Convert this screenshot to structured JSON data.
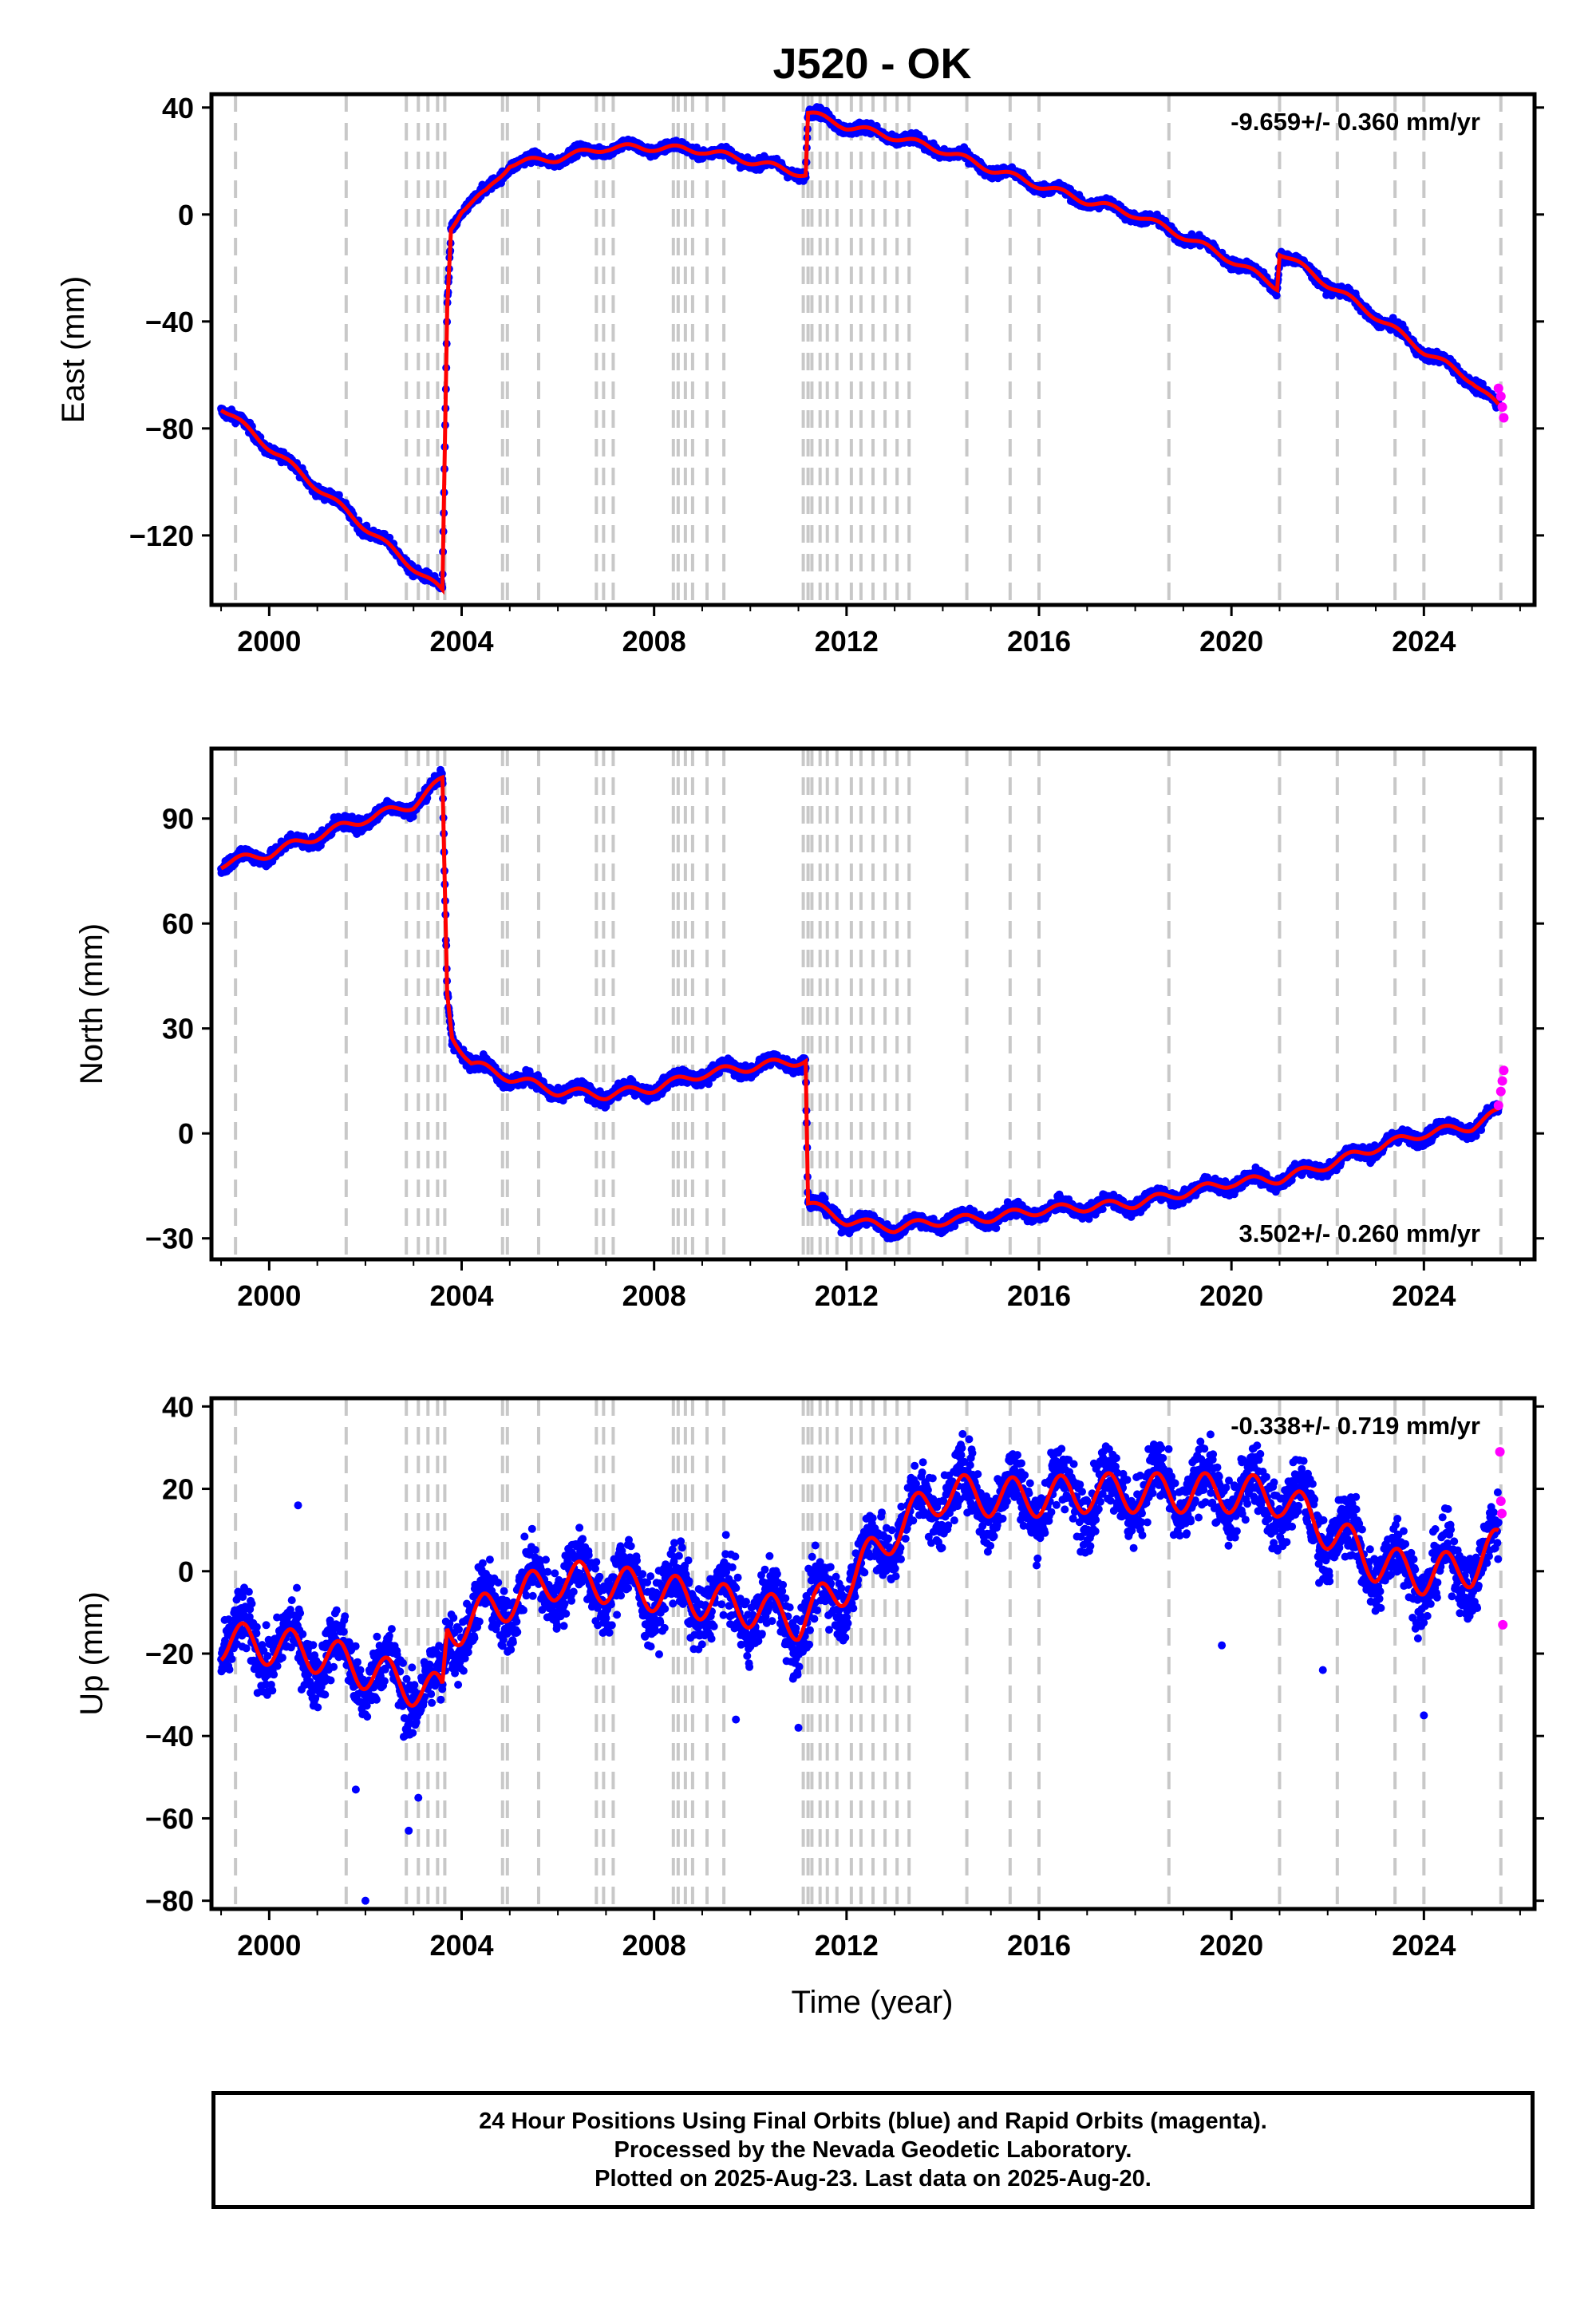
{
  "title": "J520 - OK",
  "xlabel": "Time (year)",
  "footer_lines": [
    "24 Hour Positions Using Final Orbits (blue) and Rapid Orbits (magenta).",
    "Processed by the Nevada Geodetic Laboratory.",
    "Plotted on 2025-Aug-23. Last data on 2025-Aug-20."
  ],
  "colors": {
    "final": "#0000ff",
    "rapid": "#ff00ff",
    "model": "#ff0000",
    "event_line": "#c8c8c8"
  },
  "chart_data": [
    {
      "type": "scatter",
      "component": "East",
      "ylabel": "East (mm)",
      "xlim": [
        1998.8,
        2026.3
      ],
      "ylim": [
        -146,
        45
      ],
      "yticks": [
        40,
        0,
        -40,
        -80,
        -120
      ],
      "xticks": [
        2000,
        2004,
        2008,
        2012,
        2016,
        2020,
        2024
      ],
      "rate_text": "-9.659+/- 0.360 mm/yr",
      "grid": false,
      "series": [
        {
          "role": "final",
          "values": [
            [
              1999.0,
              -72
            ],
            [
              2003.6,
              -141
            ],
            [
              2003.7,
              -35
            ],
            [
              2003.78,
              -5
            ],
            [
              2004.0,
              2
            ],
            [
              2004.5,
              8
            ],
            [
              2005.0,
              19
            ],
            [
              2006.0,
              21
            ],
            [
              2007.0,
              25
            ],
            [
              2008.0,
              25
            ],
            [
              2009.0,
              24
            ],
            [
              2010.0,
              20
            ],
            [
              2011.15,
              15
            ],
            [
              2011.2,
              38
            ],
            [
              2012.0,
              33
            ],
            [
              2013.0,
              29
            ],
            [
              2014.0,
              24
            ],
            [
              2015.0,
              17
            ],
            [
              2016.0,
              11
            ],
            [
              2017.0,
              5
            ],
            [
              2018.0,
              0
            ],
            [
              2019.0,
              -8
            ],
            [
              2020.0,
              -17
            ],
            [
              2020.95,
              -27
            ],
            [
              2021.0,
              -14
            ],
            [
              2022.0,
              -26
            ],
            [
              2023.0,
              -38
            ],
            [
              2024.0,
              -51
            ],
            [
              2025.0,
              -62
            ],
            [
              2025.55,
              -72
            ]
          ]
        },
        {
          "role": "rapid",
          "values": [
            [
              2025.55,
              -65
            ],
            [
              2025.6,
              -68
            ],
            [
              2025.63,
              -72
            ],
            [
              2025.66,
              -76
            ]
          ]
        }
      ]
    },
    {
      "type": "scatter",
      "component": "North",
      "ylabel": "North (mm)",
      "xlim": [
        1998.8,
        2026.3
      ],
      "ylim": [
        -36,
        110
      ],
      "yticks": [
        90,
        60,
        30,
        0,
        -30
      ],
      "xticks": [
        2000,
        2004,
        2008,
        2012,
        2016,
        2020,
        2024
      ],
      "rate_text": "3.502+/- 0.260 mm/yr",
      "grid": false,
      "series": [
        {
          "role": "final",
          "values": [
            [
              1999.0,
              77
            ],
            [
              2000.0,
              80
            ],
            [
              2001.0,
              85
            ],
            [
              2002.0,
              90
            ],
            [
              2003.0,
              94
            ],
            [
              2003.6,
              101
            ],
            [
              2003.7,
              40
            ],
            [
              2003.8,
              28
            ],
            [
              2004.2,
              20
            ],
            [
              2005.0,
              16
            ],
            [
              2006.0,
              12
            ],
            [
              2007.0,
              11
            ],
            [
              2008.0,
              13
            ],
            [
              2009.0,
              17
            ],
            [
              2010.0,
              19
            ],
            [
              2011.15,
              21
            ],
            [
              2011.2,
              -20
            ],
            [
              2012.0,
              -25
            ],
            [
              2013.0,
              -27
            ],
            [
              2014.0,
              -25
            ],
            [
              2015.0,
              -24
            ],
            [
              2016.0,
              -22
            ],
            [
              2017.0,
              -21
            ],
            [
              2018.0,
              -20
            ],
            [
              2019.0,
              -17
            ],
            [
              2020.0,
              -14
            ],
            [
              2021.0,
              -13
            ],
            [
              2022.0,
              -9
            ],
            [
              2023.0,
              -4
            ],
            [
              2024.0,
              0
            ],
            [
              2025.0,
              2
            ],
            [
              2025.55,
              6
            ]
          ]
        },
        {
          "role": "rapid",
          "values": [
            [
              2025.55,
              8
            ],
            [
              2025.6,
              12
            ],
            [
              2025.63,
              15
            ],
            [
              2025.66,
              18
            ]
          ]
        }
      ]
    },
    {
      "type": "scatter",
      "component": "Up",
      "ylabel": "Up (mm)",
      "xlim": [
        1998.8,
        2026.3
      ],
      "ylim": [
        -82,
        42
      ],
      "yticks": [
        40,
        20,
        0,
        -20,
        -40,
        -60,
        -80
      ],
      "xticks": [
        2000,
        2004,
        2008,
        2012,
        2016,
        2020,
        2024
      ],
      "rate_text": "-0.338+/- 0.719 mm/yr",
      "grid": false,
      "series": [
        {
          "role": "final",
          "values": [
            [
              1999.0,
              -17
            ],
            [
              2000.0,
              -18
            ],
            [
              2001.0,
              -20
            ],
            [
              2002.0,
              -24
            ],
            [
              2003.0,
              -28
            ],
            [
              2003.6,
              -30
            ],
            [
              2003.7,
              -14
            ],
            [
              2004.0,
              -13
            ],
            [
              2005.0,
              -7
            ],
            [
              2006.0,
              -2
            ],
            [
              2007.0,
              -3
            ],
            [
              2008.0,
              -5
            ],
            [
              2009.0,
              -7
            ],
            [
              2010.0,
              -9
            ],
            [
              2011.0,
              -12
            ],
            [
              2012.0,
              -3
            ],
            [
              2013.0,
              10
            ],
            [
              2014.0,
              19
            ],
            [
              2015.0,
              18
            ],
            [
              2016.0,
              18
            ],
            [
              2017.0,
              19
            ],
            [
              2018.0,
              19
            ],
            [
              2019.0,
              19
            ],
            [
              2020.0,
              19
            ],
            [
              2021.0,
              18
            ],
            [
              2022.0,
              10
            ],
            [
              2023.0,
              2
            ],
            [
              2024.0,
              -1
            ],
            [
              2025.0,
              1
            ],
            [
              2025.55,
              6
            ]
          ]
        },
        {
          "role": "rapid",
          "values": [
            [
              2025.58,
              29
            ],
            [
              2025.6,
              17
            ],
            [
              2025.62,
              14
            ],
            [
              2025.64,
              -13
            ]
          ]
        }
      ]
    }
  ],
  "event_years": [
    1999.3,
    2001.6,
    2002.85,
    2003.1,
    2003.3,
    2003.5,
    2003.65,
    2004.85,
    2004.95,
    2005.6,
    2006.8,
    2006.95,
    2007.15,
    2008.4,
    2008.5,
    2008.65,
    2008.8,
    2009.1,
    2009.45,
    2011.1,
    2011.2,
    2011.28,
    2011.45,
    2011.6,
    2011.8,
    2012.1,
    2012.3,
    2012.55,
    2012.8,
    2013.05,
    2013.3,
    2014.5,
    2015.4,
    2016.0,
    2018.7,
    2021.0,
    2022.2,
    2023.4,
    2024.0,
    2025.6
  ]
}
